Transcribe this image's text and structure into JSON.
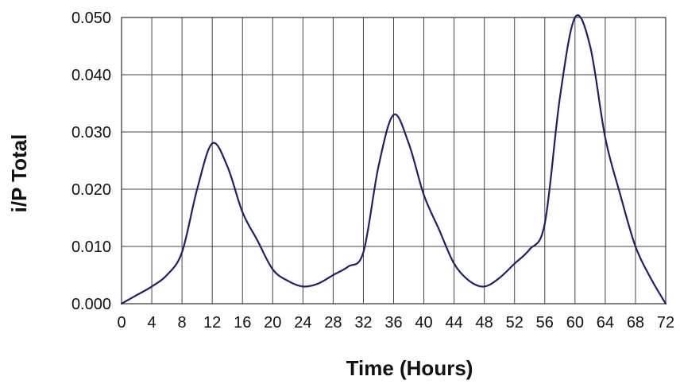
{
  "chart_data": {
    "type": "line",
    "title": "",
    "xlabel": "Time (Hours)",
    "ylabel": "i/P Total",
    "xlim": [
      0,
      72
    ],
    "ylim": [
      0,
      0.05
    ],
    "x_ticks": [
      0,
      4,
      8,
      12,
      16,
      20,
      24,
      28,
      32,
      36,
      40,
      44,
      48,
      52,
      56,
      60,
      64,
      68,
      72
    ],
    "x_tick_labels": [
      "0",
      "4",
      "8",
      "12",
      "16",
      "20",
      "24",
      "28",
      "32",
      "36",
      "40",
      "44",
      "48",
      "52",
      "56",
      "60",
      "64",
      "68",
      "72"
    ],
    "y_ticks": [
      0,
      0.01,
      0.02,
      0.03,
      0.04,
      0.05
    ],
    "y_tick_labels": [
      "0.000",
      "0.010",
      "0.020",
      "0.030",
      "0.040",
      "0.050"
    ],
    "grid": true,
    "legend": "none",
    "series": [
      {
        "color": "#1f1f6e",
        "points": [
          [
            0,
            0.0
          ],
          [
            2,
            0.0015
          ],
          [
            4,
            0.003
          ],
          [
            6,
            0.005
          ],
          [
            8,
            0.009
          ],
          [
            10,
            0.02
          ],
          [
            12,
            0.028
          ],
          [
            14,
            0.024
          ],
          [
            16,
            0.016
          ],
          [
            18,
            0.011
          ],
          [
            20,
            0.006
          ],
          [
            22,
            0.004
          ],
          [
            24,
            0.003
          ],
          [
            26,
            0.0035
          ],
          [
            28,
            0.005
          ],
          [
            30,
            0.0065
          ],
          [
            32,
            0.009
          ],
          [
            34,
            0.024
          ],
          [
            36,
            0.033
          ],
          [
            38,
            0.028
          ],
          [
            40,
            0.019
          ],
          [
            42,
            0.013
          ],
          [
            44,
            0.007
          ],
          [
            46,
            0.004
          ],
          [
            48,
            0.003
          ],
          [
            50,
            0.0045
          ],
          [
            52,
            0.007
          ],
          [
            54,
            0.0095
          ],
          [
            56,
            0.014
          ],
          [
            58,
            0.036
          ],
          [
            60,
            0.05
          ],
          [
            62,
            0.045
          ],
          [
            64,
            0.029
          ],
          [
            66,
            0.019
          ],
          [
            68,
            0.01
          ],
          [
            70,
            0.0045
          ],
          [
            72,
            0.0
          ]
        ]
      }
    ]
  }
}
